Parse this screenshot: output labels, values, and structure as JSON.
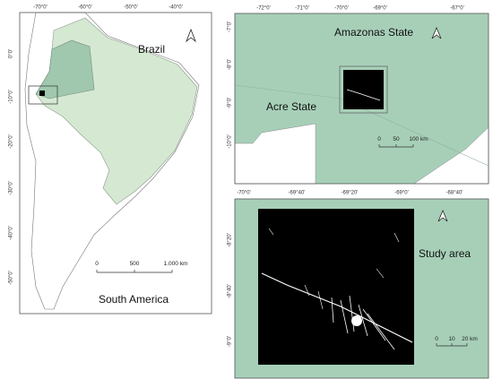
{
  "panels": [
    {
      "labels": [
        "Brazil",
        "South America"
      ],
      "xticks": [
        "-70°0'",
        "-60°0'",
        "-50°0'",
        "-40°0'"
      ],
      "yticks": [
        "0°0'",
        "-10°0'",
        "-20°0'",
        "-30°0'",
        "-40°0'",
        "-50°0'"
      ],
      "scale": [
        "0",
        "500",
        "1.000 km"
      ]
    },
    {
      "labels": [
        "Amazonas State",
        "Acre State"
      ],
      "xticks": [
        "-72°0'",
        "-71°0'",
        "-70°0'",
        "-69°0'",
        "-67°0'"
      ],
      "yticks": [
        "-7°0'",
        "-8°0'",
        "-9°0'",
        "-10°0'"
      ],
      "scale": [
        "0",
        "50",
        "100 km"
      ]
    },
    {
      "labels": [
        "Study area"
      ],
      "xticks": [
        "-70°0'",
        "-69°40'",
        "-69°20'",
        "-69°0'",
        "-68°40'"
      ],
      "yticks": [
        "-8°20'",
        "-8°40'",
        "-9°0'"
      ],
      "scale": [
        "0",
        "10",
        "20 km"
      ]
    }
  ]
}
